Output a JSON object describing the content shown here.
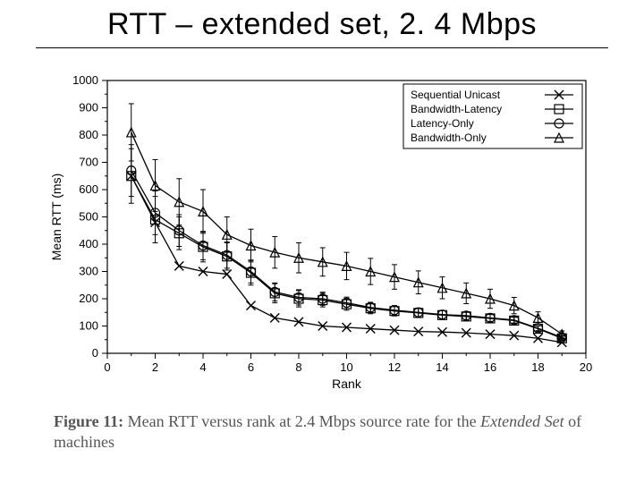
{
  "slide": {
    "title": "RTT – extended set, 2. 4 Mbps"
  },
  "caption": {
    "fig_label": "Figure 11:",
    "text_a": "  Mean RTT versus rank at 2.4 Mbps source rate for the ",
    "italic": "Extended Set",
    "text_b": " of machines"
  },
  "chart": {
    "type": "line-scatter-errorbars",
    "background_color": "#ffffff",
    "axis_color": "#000000",
    "tick_color": "#000000",
    "series_color": "#000000",
    "line_width": 1.3,
    "marker_size": 5,
    "title_fontsize": 12,
    "axis_label_fontsize": 14,
    "tick_fontsize": 13,
    "legend_fontsize": 12,
    "xlabel": "Rank",
    "ylabel": "Mean RTT (ms)",
    "xlim": [
      0,
      20
    ],
    "ylim": [
      0,
      1000
    ],
    "xticks": [
      0,
      2,
      4,
      6,
      8,
      10,
      12,
      14,
      16,
      18,
      20
    ],
    "yticks": [
      0,
      100,
      200,
      300,
      400,
      500,
      600,
      700,
      800,
      900,
      1000
    ],
    "legend": {
      "position": "top-right",
      "items": [
        {
          "label": "Sequential Unicast",
          "marker": "x"
        },
        {
          "label": "Bandwidth-Latency",
          "marker": "square"
        },
        {
          "label": "Latency-Only",
          "marker": "circle"
        },
        {
          "label": "Bandwidth-Only",
          "marker": "triangle"
        }
      ]
    },
    "series": [
      {
        "name": "Sequential Unicast",
        "marker": "x",
        "x": [
          1,
          2,
          3,
          4,
          5,
          6,
          7,
          8,
          9,
          10,
          11,
          12,
          13,
          14,
          15,
          16,
          17,
          18,
          19
        ],
        "y": [
          650,
          480,
          320,
          300,
          290,
          175,
          130,
          115,
          100,
          95,
          90,
          85,
          80,
          78,
          75,
          70,
          65,
          55,
          40
        ],
        "err": [
          0,
          0,
          0,
          0,
          0,
          0,
          0,
          0,
          0,
          0,
          0,
          0,
          0,
          0,
          0,
          0,
          0,
          0,
          0
        ]
      },
      {
        "name": "Bandwidth-Latency",
        "marker": "square",
        "x": [
          1,
          2,
          3,
          4,
          5,
          6,
          7,
          8,
          9,
          10,
          11,
          12,
          13,
          14,
          15,
          16,
          17,
          18,
          19
        ],
        "y": [
          650,
          490,
          440,
          390,
          355,
          295,
          220,
          200,
          195,
          180,
          165,
          155,
          148,
          140,
          135,
          128,
          120,
          90,
          55
        ],
        "err": [
          100,
          85,
          60,
          55,
          50,
          45,
          35,
          30,
          25,
          22,
          20,
          18,
          17,
          16,
          15,
          14,
          12,
          10,
          8
        ]
      },
      {
        "name": "Latency-Only",
        "marker": "circle",
        "x": [
          1,
          2,
          3,
          4,
          5,
          6,
          7,
          8,
          9,
          10,
          11,
          12,
          13,
          14,
          15,
          16,
          17,
          18,
          19
        ],
        "y": [
          670,
          515,
          450,
          395,
          360,
          300,
          225,
          205,
          200,
          185,
          168,
          158,
          150,
          142,
          138,
          130,
          122,
          92,
          58
        ],
        "err": [
          95,
          80,
          58,
          52,
          48,
          42,
          33,
          28,
          24,
          21,
          19,
          17,
          16,
          15,
          14,
          13,
          11,
          9,
          8
        ]
      },
      {
        "name": "Bandwidth-Only",
        "marker": "triangle",
        "x": [
          1,
          2,
          3,
          4,
          5,
          6,
          7,
          8,
          9,
          10,
          11,
          12,
          13,
          14,
          15,
          16,
          17,
          18,
          19
        ],
        "y": [
          810,
          615,
          555,
          520,
          435,
          395,
          370,
          350,
          335,
          320,
          300,
          280,
          260,
          240,
          220,
          200,
          175,
          130,
          70
        ],
        "err": [
          105,
          95,
          85,
          80,
          65,
          60,
          58,
          55,
          52,
          50,
          48,
          45,
          42,
          40,
          38,
          35,
          30,
          22,
          12
        ]
      }
    ]
  }
}
